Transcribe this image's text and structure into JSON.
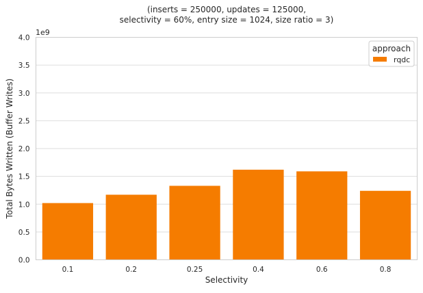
{
  "chart_data": {
    "type": "bar",
    "title_lines": [
      "(inserts = 250000, updates = 125000,",
      "selectivity = 60%, entry size = 1024, size ratio = 3)"
    ],
    "xlabel": "Selectivity",
    "ylabel": "Total Bytes Written (Buffer Writes)",
    "y_offset_label": "1e9",
    "y_scale": 1000000000,
    "ylim": [
      0,
      4.0
    ],
    "yticks": [
      "0.0",
      "0.5",
      "1.0",
      "1.5",
      "2.0",
      "2.5",
      "3.0",
      "3.5",
      "4.0"
    ],
    "categories": [
      "0.1",
      "0.2",
      "0.25",
      "0.4",
      "0.6",
      "0.8"
    ],
    "series": [
      {
        "name": "rqdc",
        "color": "#f57c00",
        "values": [
          1.02,
          1.17,
          1.33,
          1.62,
          1.59,
          1.24
        ]
      }
    ],
    "legend": {
      "title": "approach",
      "placement": "top-right"
    },
    "grid": "horizontal"
  }
}
